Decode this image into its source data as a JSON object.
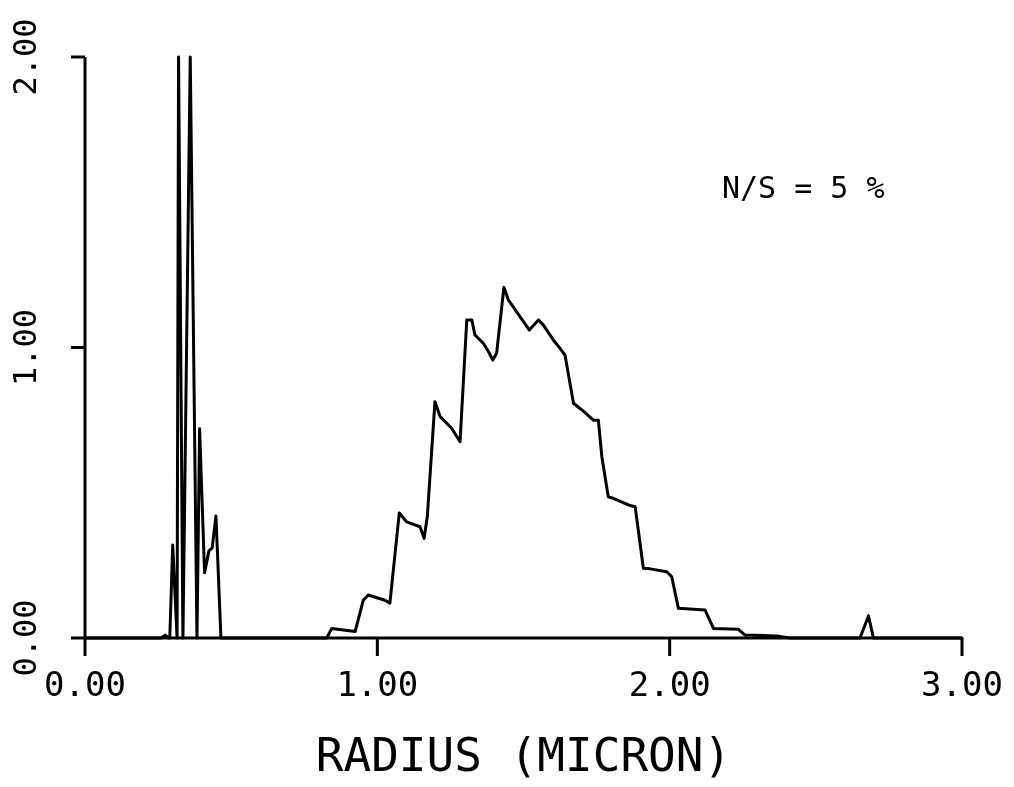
{
  "chart_data": {
    "type": "line",
    "xlabel": "RADIUS (MICRON)",
    "annotations": [
      "N/S = 5 %"
    ],
    "xlim": [
      0,
      3
    ],
    "xticks": [
      {
        "value": 0,
        "label": "0.00"
      },
      {
        "value": 1,
        "label": "1.00"
      },
      {
        "value": 2,
        "label": "2.00"
      },
      {
        "value": 3,
        "label": "3.00"
      }
    ],
    "ylim": [
      0,
      2
    ],
    "yticks": [
      {
        "value": 0,
        "label": "0.00"
      },
      {
        "value": 1,
        "label": "1.00"
      },
      {
        "value": 2,
        "label": "2.00"
      }
    ],
    "grid": false,
    "marker": "none",
    "line_style": "solid",
    "series": [
      {
        "color": "#000000",
        "x": [
          0,
          0.26,
          0.275,
          0.285,
          0.29,
          0.3,
          0.315,
          0.32,
          0.335,
          0.36,
          0.383,
          0.392,
          0.409,
          0.424,
          0.435,
          0.448,
          0.465,
          0.827,
          0.844,
          0.924,
          0.952,
          0.969,
          1.026,
          1.043,
          1.075,
          1.1,
          1.146,
          1.16,
          1.171,
          1.197,
          1.215,
          1.254,
          1.283,
          1.306,
          1.323,
          1.334,
          1.363,
          1.38,
          1.395,
          1.408,
          1.433,
          1.448,
          1.488,
          1.52,
          1.551,
          1.568,
          1.602,
          1.625,
          1.642,
          1.671,
          1.7,
          1.739,
          1.756,
          1.768,
          1.79,
          1.807,
          1.859,
          1.882,
          1.91,
          1.933,
          1.99,
          2.007,
          2.03,
          2.121,
          2.15,
          2.235,
          2.258,
          2.366,
          2.41,
          2.651,
          2.68,
          2.697,
          3
        ],
        "values": [
          0,
          0,
          0.01,
          0,
          0,
          0.32,
          0,
          2,
          0,
          2,
          0,
          0.72,
          0.225,
          0.3,
          0.31,
          0.42,
          0,
          0,
          0.033,
          0.022,
          0.13,
          0.148,
          0.13,
          0.12,
          0.43,
          0.4,
          0.383,
          0.343,
          0.418,
          0.813,
          0.762,
          0.722,
          0.676,
          1.095,
          1.095,
          1.043,
          1.014,
          0.986,
          0.957,
          0.98,
          1.207,
          1.164,
          1.106,
          1.06,
          1.095,
          1.077,
          1.026,
          0.997,
          0.974,
          0.808,
          0.785,
          0.75,
          0.75,
          0.624,
          0.486,
          0.481,
          0.458,
          0.452,
          0.24,
          0.238,
          0.228,
          0.211,
          0.102,
          0.096,
          0.033,
          0.03,
          0.01,
          0.007,
          0,
          0,
          0.076,
          0,
          0
        ]
      }
    ]
  }
}
